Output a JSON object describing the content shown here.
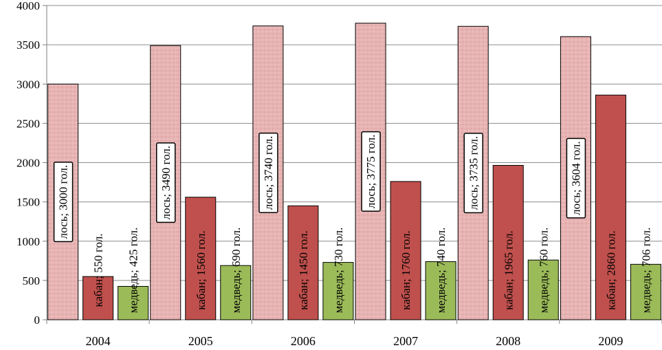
{
  "chart_data": {
    "type": "bar",
    "categories": [
      "2004",
      "2005",
      "2006",
      "2007",
      "2008",
      "2009"
    ],
    "ylim": [
      0,
      4000
    ],
    "yticks": [
      0,
      500,
      1000,
      1500,
      2000,
      2500,
      3000,
      3500,
      4000
    ],
    "grid": "horizontal",
    "legend": "none",
    "series": [
      {
        "name": "лось",
        "values": [
          3000,
          3490,
          3740,
          3775,
          3735,
          3604
        ],
        "labels": [
          "лось; 3000 гол.",
          "лось; 3490 гол.",
          "лось; 3740 гол.",
          "лось; 3775 гол.",
          "лось; 3735 гол.",
          "лось; 3604 гол."
        ],
        "color": "#e8b4b4",
        "label_boxed": true
      },
      {
        "name": "кабан",
        "values": [
          550,
          1560,
          1450,
          1760,
          1965,
          2860
        ],
        "labels": [
          "кабан; 550 гол.",
          "кабан; 1560 гол.",
          "кабан; 1450 гол.",
          "кабан; 1760 гол.",
          "кабан; 1965 гол.",
          "кабан; 2860 гол."
        ],
        "color": "#c0504d",
        "label_boxed": false
      },
      {
        "name": "медведь",
        "values": [
          425,
          690,
          730,
          740,
          760,
          706
        ],
        "labels": [
          "медведь; 425 гол.",
          "медведь; 690 гол.",
          "медведь; 730 гол.",
          "медведь; 740 гол.",
          "медведь; 760 гол.",
          "медведь; 706 гол."
        ],
        "color": "#9bbb59",
        "label_boxed": false
      }
    ]
  }
}
